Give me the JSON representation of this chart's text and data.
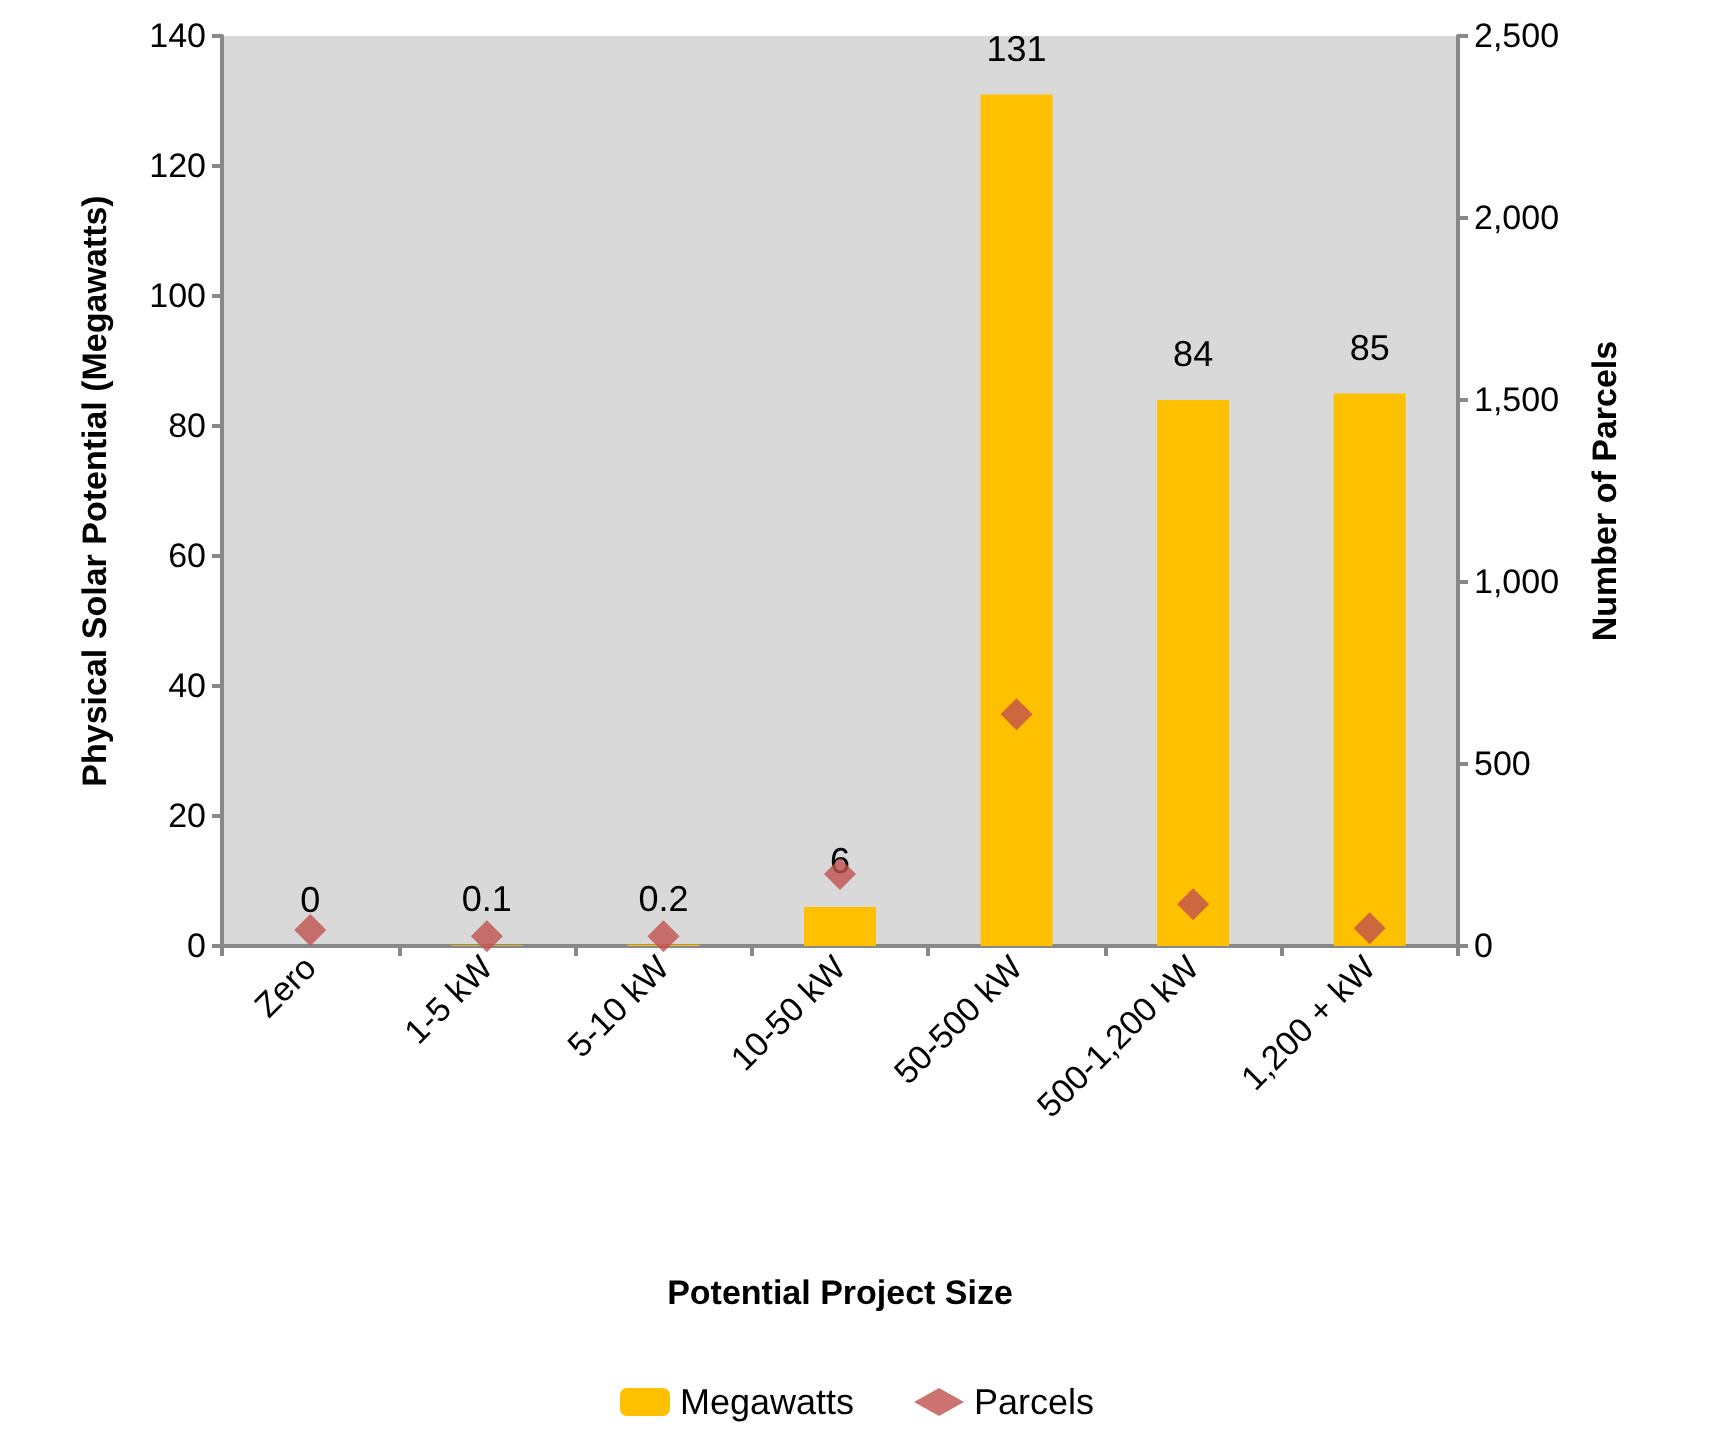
{
  "chart_data": {
    "type": "bar",
    "xlabel": "Potential Project Size",
    "ylabel": "Physical Solar Potential (Megawatts)",
    "y2label": "Number of Parcels",
    "categories": [
      "Zero",
      "1-5 kW",
      "5-10 kW",
      "10-50 kW",
      "50-500 kW",
      "500-1,200 kW",
      "1,200 + kW"
    ],
    "series": [
      {
        "name": "Megawatts",
        "color": "#ffc000",
        "values": [
          0,
          0.1,
          0.2,
          6,
          131,
          84,
          85
        ],
        "value_labels": [
          "0",
          "0.1",
          "0.2",
          "6",
          "131",
          "84",
          "85"
        ]
      },
      {
        "name": "Parcels",
        "type": "scatter",
        "axis": "y2",
        "marker": "diamond",
        "color": "#c0504d",
        "values": [
          44,
          27,
          27,
          198,
          637,
          115,
          49
        ]
      }
    ],
    "ylim": [
      0,
      140
    ],
    "yticks": [
      0,
      20,
      40,
      60,
      80,
      100,
      120,
      140
    ],
    "y2lim": [
      0,
      2500
    ],
    "y2ticks": [
      {
        "value": 0,
        "label": "0"
      },
      {
        "value": 500,
        "label": "500"
      },
      {
        "value": 1000,
        "label": "1,000"
      },
      {
        "value": 1500,
        "label": "1,500"
      },
      {
        "value": 2000,
        "label": "2,000"
      },
      {
        "value": 2500,
        "label": "2,500"
      }
    ],
    "grid": false,
    "legend": "bottom"
  }
}
